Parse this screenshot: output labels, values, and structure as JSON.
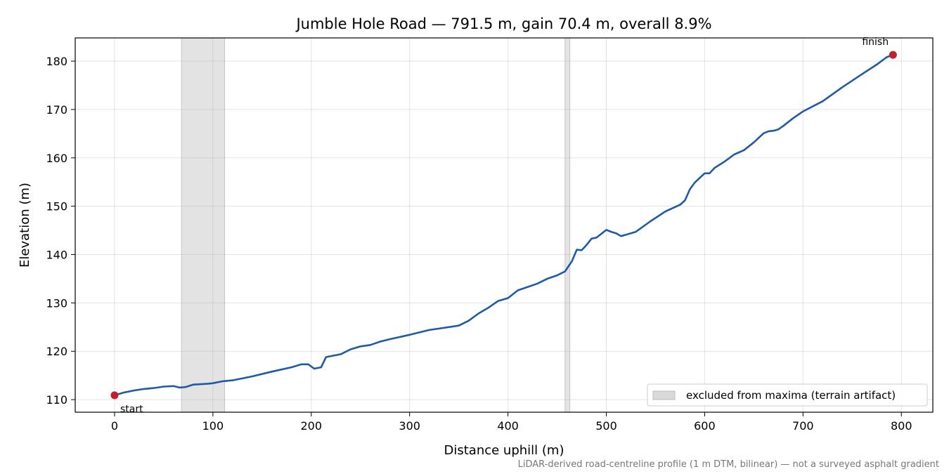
{
  "chart_data": {
    "type": "line",
    "title": "Jumble Hole Road — 791.5 m, gain 70.4 m, overall 8.9%",
    "xlabel": "Distance uphill (m)",
    "ylabel": "Elevation (m)",
    "xlim": [
      -40,
      832
    ],
    "ylim": [
      107.4,
      184.8
    ],
    "x_ticks": [
      0,
      100,
      200,
      300,
      400,
      500,
      600,
      700,
      800
    ],
    "y_ticks": [
      110,
      120,
      130,
      140,
      150,
      160,
      170,
      180
    ],
    "grid": true,
    "line_color": "#1f5aa8",
    "marker_color": "#c0202a",
    "band_color": "#d9d9d9",
    "series": [
      {
        "x": [
          0,
          10,
          20,
          30,
          40,
          50,
          60,
          66,
          72,
          80,
          88,
          95,
          100,
          110,
          120,
          140,
          160,
          180,
          190,
          197,
          203,
          210,
          215,
          220,
          230,
          240,
          250,
          260,
          270,
          280,
          300,
          320,
          330,
          350,
          360,
          370,
          380,
          390,
          400,
          410,
          430,
          440,
          450,
          458,
          465,
          470,
          475,
          480,
          485,
          490,
          495,
          500,
          505,
          510,
          515,
          530,
          545,
          560,
          575,
          580,
          585,
          590,
          600,
          605,
          610,
          620,
          630,
          640,
          650,
          660,
          665,
          670,
          675,
          680,
          690,
          700,
          720,
          740,
          760,
          775,
          785,
          791.5
        ],
        "y": [
          110.9,
          111.5,
          111.9,
          112.2,
          112.4,
          112.7,
          112.8,
          112.5,
          112.6,
          113.1,
          113.2,
          113.3,
          113.4,
          113.8,
          114.0,
          114.8,
          115.8,
          116.7,
          117.3,
          117.3,
          116.4,
          116.7,
          118.8,
          119.0,
          119.4,
          120.4,
          121.0,
          121.3,
          122.0,
          122.5,
          123.4,
          124.4,
          124.7,
          125.3,
          126.3,
          127.8,
          129.0,
          130.4,
          131.0,
          132.6,
          134.0,
          135.0,
          135.7,
          136.5,
          138.6,
          141.0,
          140.9,
          142.0,
          143.3,
          143.5,
          144.3,
          145.1,
          144.7,
          144.4,
          143.8,
          144.7,
          146.9,
          148.9,
          150.3,
          151.2,
          153.5,
          154.9,
          156.8,
          156.8,
          157.9,
          159.2,
          160.7,
          161.6,
          163.2,
          165.1,
          165.5,
          165.6,
          165.9,
          166.6,
          168.2,
          169.6,
          171.7,
          174.6,
          177.3,
          179.3,
          180.8,
          181.3
        ]
      }
    ],
    "markers": [
      {
        "x": 0,
        "y": 110.9,
        "label": "start"
      },
      {
        "x": 791.5,
        "y": 181.3,
        "label": "finish"
      }
    ],
    "excluded_bands": [
      {
        "x0": 68,
        "x1": 112
      },
      {
        "x0": 458,
        "x1": 463
      }
    ],
    "legend": {
      "position": "lower-right",
      "label": "excluded from maxima (terrain artifact)"
    },
    "footnote": "LiDAR-derived road-centreline profile (1 m DTM, bilinear) — not a surveyed asphalt gradient"
  }
}
